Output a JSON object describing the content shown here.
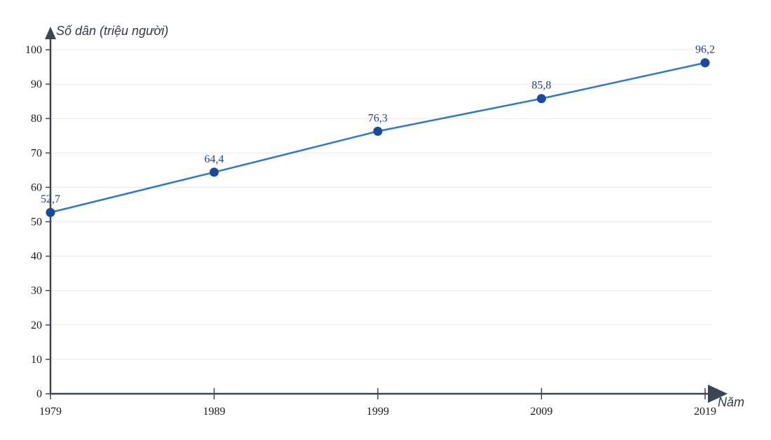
{
  "chart_data": {
    "type": "line",
    "ylabel": "Số dân (triệu người)",
    "xlabel": "Năm",
    "x": [
      "1979",
      "1989",
      "1999",
      "2009",
      "2019"
    ],
    "series": [
      {
        "values": [
          52.7,
          64.4,
          76.3,
          85.8,
          96.2
        ]
      }
    ],
    "data_labels": [
      "52,7",
      "64,4",
      "76,3",
      "85,8",
      "96,2"
    ],
    "yticks": [
      0,
      10,
      20,
      30,
      40,
      50,
      60,
      70,
      80,
      90,
      100
    ],
    "ylim": [
      0,
      100
    ],
    "grid": true,
    "colors": {
      "line": "#2b78d0",
      "marker": "#1a4aa0",
      "axis": "#3a4654",
      "grid": "#e8e8e8",
      "label": "#1f3f8f"
    }
  }
}
